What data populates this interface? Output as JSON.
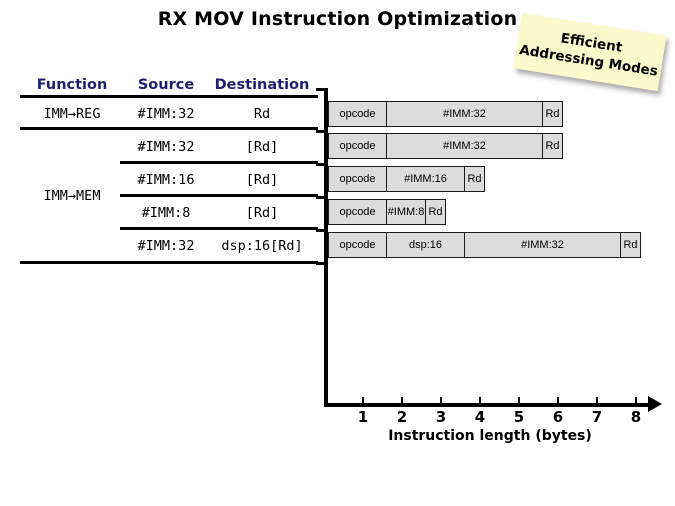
{
  "title": "RX MOV Instruction Optimization",
  "sticky_note": {
    "line1": "Efficient",
    "line2": "Addressing Modes",
    "bg_color": "#fafacd"
  },
  "table": {
    "headers": {
      "function": "Function",
      "source": "Source",
      "destination": "Destination"
    },
    "header_color": "#1f1f70",
    "row1": {
      "function": "IMM→REG",
      "source": "#IMM:32",
      "destination": "Rd"
    },
    "group2": {
      "function": "IMM→MEM",
      "rows": [
        {
          "source": "#IMM:32",
          "destination": "[Rd]"
        },
        {
          "source": "#IMM:16",
          "destination": "[Rd]"
        },
        {
          "source": "#IMM:8",
          "destination": "[Rd]"
        },
        {
          "source": "#IMM:32",
          "destination": "dsp:16[Rd]"
        }
      ]
    }
  },
  "chart_data": {
    "type": "bar",
    "orientation": "horizontal",
    "xlabel": "Instruction length (bytes)",
    "x_ticks": [
      1,
      2,
      3,
      4,
      5,
      6,
      7,
      8
    ],
    "xlim": [
      0,
      8
    ],
    "grid": false,
    "bar_fill": "#dcdcdc",
    "bars": [
      {
        "total_bytes": 6,
        "fields": [
          {
            "label": "opcode",
            "bytes": 1.5
          },
          {
            "label": "#IMM:32",
            "bytes": 4
          },
          {
            "label": "Rd",
            "bytes": 0.5
          }
        ]
      },
      {
        "total_bytes": 6,
        "fields": [
          {
            "label": "opcode",
            "bytes": 1.5
          },
          {
            "label": "#IMM:32",
            "bytes": 4
          },
          {
            "label": "Rd",
            "bytes": 0.5
          }
        ]
      },
      {
        "total_bytes": 4,
        "fields": [
          {
            "label": "opcode",
            "bytes": 1.5
          },
          {
            "label": "#IMM:16",
            "bytes": 2
          },
          {
            "label": "Rd",
            "bytes": 0.5
          }
        ]
      },
      {
        "total_bytes": 3,
        "fields": [
          {
            "label": "opcode",
            "bytes": 1.5
          },
          {
            "label": "#IMM:8",
            "bytes": 1
          },
          {
            "label": "Rd",
            "bytes": 0.5
          }
        ]
      },
      {
        "total_bytes": 8,
        "fields": [
          {
            "label": "opcode",
            "bytes": 1.5
          },
          {
            "label": "dsp:16",
            "bytes": 2
          },
          {
            "label": "#IMM:32",
            "bytes": 4
          },
          {
            "label": "Rd",
            "bytes": 0.5
          }
        ]
      }
    ]
  }
}
